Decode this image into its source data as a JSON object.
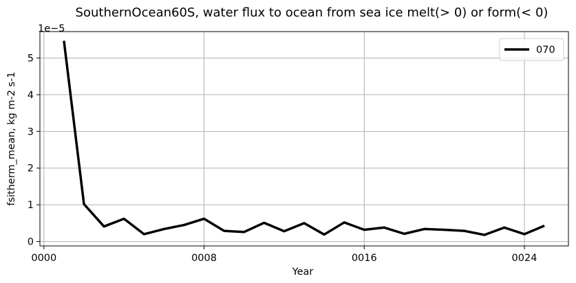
{
  "chart_data": {
    "type": "line",
    "title": "SouthernOcean60S, water flux to ocean from sea ice melt(> 0) or form(< 0)",
    "xlabel": "Year",
    "ylabel": "fsitherm_mean, kg m-2 s-1",
    "y_offset_label": "1e−5",
    "x_ticks": [
      0,
      8,
      16,
      24
    ],
    "x_tick_labels": [
      "0000",
      "0008",
      "0016",
      "0024"
    ],
    "y_ticks": [
      0,
      1,
      2,
      3,
      4,
      5
    ],
    "y_tick_labels": [
      "0",
      "1",
      "2",
      "3",
      "4",
      "5"
    ],
    "xlim": [
      -0.2,
      26.2
    ],
    "ylim": [
      -0.12,
      5.72
    ],
    "grid": true,
    "legend_position": "top-right",
    "series": [
      {
        "name": "070",
        "color": "#000000",
        "x": [
          1,
          2,
          3,
          4,
          5,
          6,
          7,
          8,
          9,
          10,
          11,
          12,
          13,
          14,
          15,
          16,
          17,
          18,
          19,
          20,
          21,
          22,
          23,
          24,
          25
        ],
        "values": [
          5.47,
          1.02,
          0.41,
          0.62,
          0.2,
          0.34,
          0.45,
          0.62,
          0.29,
          0.26,
          0.51,
          0.28,
          0.5,
          0.19,
          0.52,
          0.32,
          0.38,
          0.21,
          0.34,
          0.32,
          0.29,
          0.18,
          0.38,
          0.2,
          0.43
        ]
      }
    ]
  }
}
